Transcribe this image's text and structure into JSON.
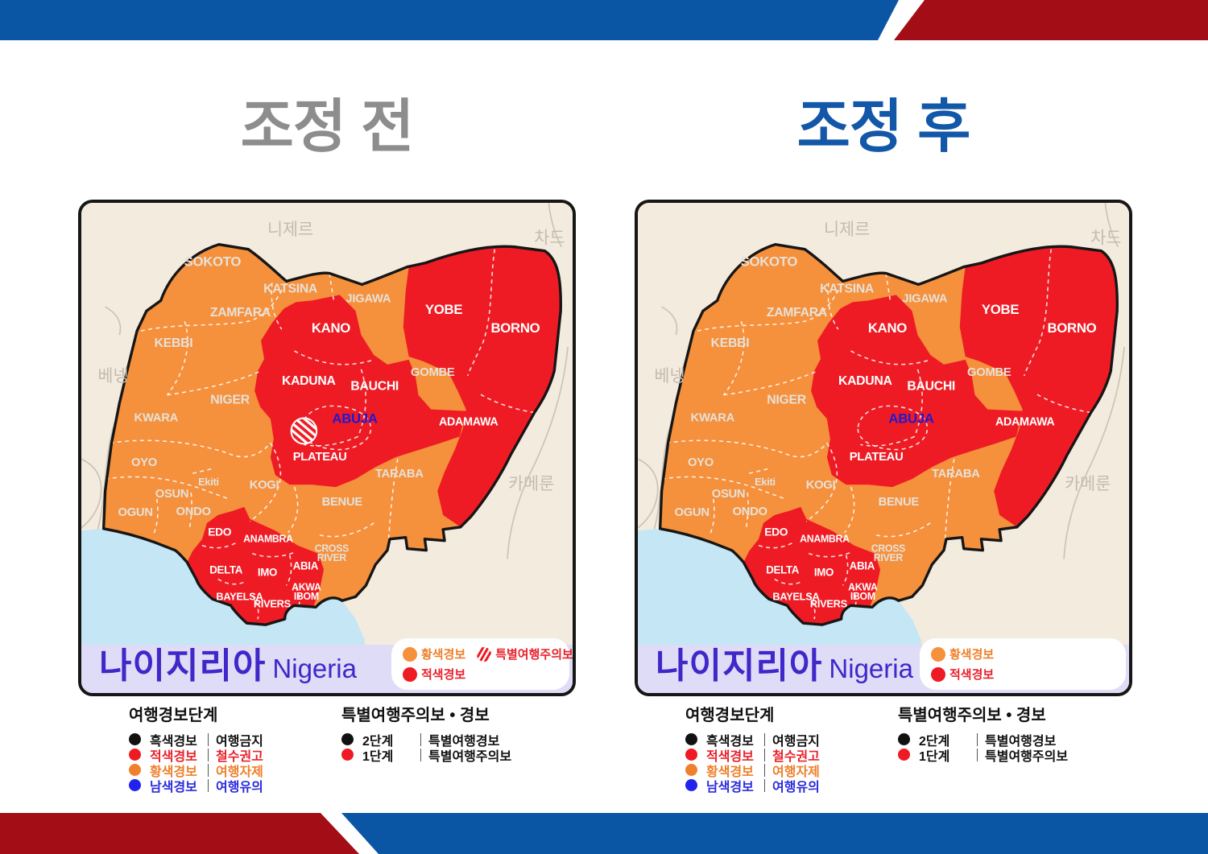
{
  "titles": {
    "before": "조정 전",
    "after": "조정 후"
  },
  "colors": {
    "banner_blue": "#0B56A4",
    "banner_red": "#A30D16",
    "alert_orange": "#F5903C",
    "alert_red": "#EE1B24",
    "sea": "#C5E6F4",
    "land": "#F3EBDE",
    "footer_bar": "#DEDCF6",
    "country_name": "#4126C9"
  },
  "map": {
    "country_kr": "나이지리아",
    "country_en": "Nigeria",
    "neighbors": [
      {
        "id": "niger",
        "label": "니제르"
      },
      {
        "id": "chad",
        "label": "차드"
      },
      {
        "id": "benin",
        "label": "베넹"
      },
      {
        "id": "cameroon",
        "label": "카메룬"
      }
    ],
    "states": [
      {
        "id": "sokoto",
        "label": "SOKOTO",
        "level": "orange"
      },
      {
        "id": "katsina",
        "label": "KATSINA",
        "level": "orange"
      },
      {
        "id": "zamfara",
        "label": "ZAMFARA",
        "level": "orange"
      },
      {
        "id": "kebbi",
        "label": "KEBBI",
        "level": "orange"
      },
      {
        "id": "jigawa",
        "label": "JIGAWA",
        "level": "orange"
      },
      {
        "id": "kano",
        "label": "KANO",
        "level": "red"
      },
      {
        "id": "yobe",
        "label": "YOBE",
        "level": "red"
      },
      {
        "id": "borno",
        "label": "BORNO",
        "level": "red"
      },
      {
        "id": "gombe",
        "label": "GOMBE",
        "level": "orange"
      },
      {
        "id": "kaduna",
        "label": "KADUNA",
        "level": "red"
      },
      {
        "id": "bauchi",
        "label": "BAUCHI",
        "level": "red"
      },
      {
        "id": "niger-state",
        "label": "NIGER",
        "level": "orange"
      },
      {
        "id": "kwara",
        "label": "KWARA",
        "level": "orange"
      },
      {
        "id": "abuja",
        "label": "ABUJA",
        "level": "capital"
      },
      {
        "id": "adamawa",
        "label": "ADAMAWA",
        "level": "red"
      },
      {
        "id": "oyo",
        "label": "OYO",
        "level": "orange"
      },
      {
        "id": "plateau",
        "label": "PLATEAU",
        "level": "red"
      },
      {
        "id": "ekiti",
        "label": "Ekiti",
        "level": "orange"
      },
      {
        "id": "taraba",
        "label": "TARABA",
        "level": "orange"
      },
      {
        "id": "kogi",
        "label": "KOGI",
        "level": "orange"
      },
      {
        "id": "osun",
        "label": "OSUN",
        "level": "orange"
      },
      {
        "id": "benue",
        "label": "BENUE",
        "level": "orange"
      },
      {
        "id": "ogun",
        "label": "OGUN",
        "level": "orange"
      },
      {
        "id": "ondo",
        "label": "ONDO",
        "level": "orange"
      },
      {
        "id": "edo",
        "label": "EDO",
        "level": "red"
      },
      {
        "id": "anambra",
        "label": "ANAMBRA",
        "level": "red"
      },
      {
        "id": "cross-river",
        "label": "CROSS\nRIVER",
        "level": "orange"
      },
      {
        "id": "delta",
        "label": "DELTA",
        "level": "red"
      },
      {
        "id": "imo",
        "label": "IMO",
        "level": "red"
      },
      {
        "id": "abia",
        "label": "ABIA",
        "level": "red"
      },
      {
        "id": "akwa-ibom",
        "label": "AKWA\nIBOM",
        "level": "red"
      },
      {
        "id": "bayelsa",
        "label": "BAYELSA",
        "level": "red"
      },
      {
        "id": "rivers",
        "label": "RIVERS",
        "level": "red"
      }
    ]
  },
  "cards": [
    {
      "id": "before",
      "title": "조정 전",
      "show_special_zone": true,
      "map_legend_rows": [
        [
          {
            "icon": "orange-dot",
            "text": "황색경보",
            "color": "#EE7F2A"
          },
          {
            "icon": "hatch-dot",
            "text": "특별여행주의보",
            "color": "#E8212B"
          }
        ],
        [
          {
            "icon": "red-dot",
            "text": "적색경보",
            "color": "#E8212B"
          }
        ]
      ]
    },
    {
      "id": "after",
      "title": "조정 후",
      "show_special_zone": false,
      "map_legend_rows": [
        [
          {
            "icon": "orange-dot",
            "text": "황색경보",
            "color": "#EE7F2A"
          }
        ],
        [
          {
            "icon": "red-dot",
            "text": "적색경보",
            "color": "#E8212B"
          }
        ]
      ]
    }
  ],
  "legend_steps": {
    "title": "여행경보단계",
    "rows": [
      {
        "dot": "#111111",
        "label": "흑색경보",
        "label_color": "#111111",
        "value": "여행금지",
        "value_color": "#111111"
      },
      {
        "dot": "#EE1B24",
        "label": "적색경보",
        "label_color": "#E8212B",
        "value": "철수권고",
        "value_color": "#E8212B"
      },
      {
        "dot": "#F0812C",
        "label": "황색경보",
        "label_color": "#EE7F2A",
        "value": "여행자제",
        "value_color": "#EE7F2A"
      },
      {
        "dot": "#2222EE",
        "label": "남색경보",
        "label_color": "#2B2BDD",
        "value": "여행유의",
        "value_color": "#2B2BDD"
      }
    ]
  },
  "legend_special": {
    "title": "특별여행주의보 • 경보",
    "rows": [
      {
        "dot": "#111111",
        "label": "2단계",
        "label_color": "#111111",
        "value": "특별여행경보",
        "value_color": "#111111"
      },
      {
        "dot": "#EE1B24",
        "label": "1단계",
        "label_color": "#111111",
        "value": "특별여행주의보",
        "value_color": "#111111"
      }
    ]
  }
}
